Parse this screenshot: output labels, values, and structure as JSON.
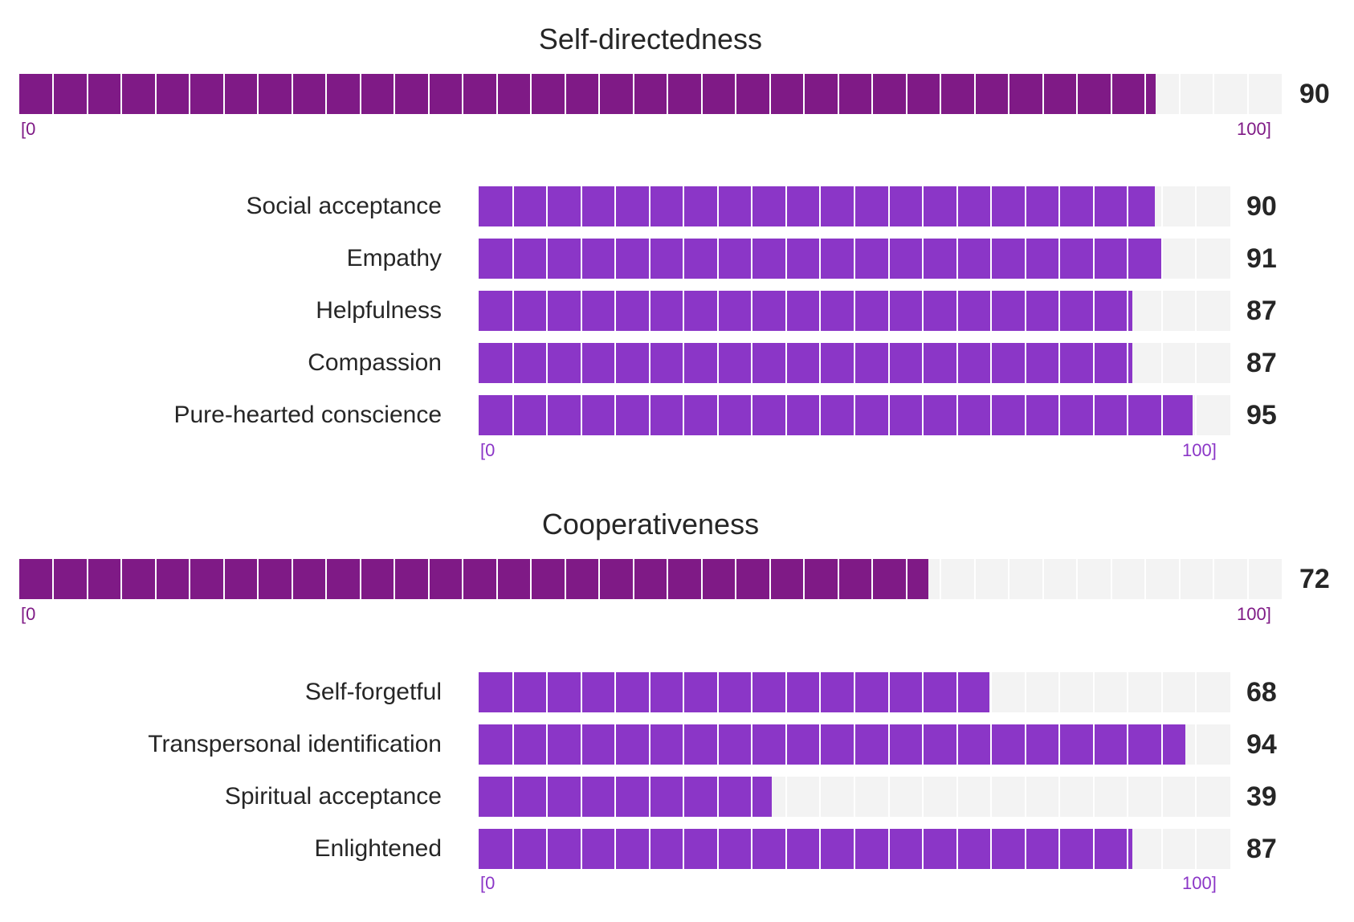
{
  "chart_data": [
    {
      "type": "bar",
      "title": "Self-directedness",
      "scale": {
        "min_label": "[0",
        "max_label": "100]",
        "min": 0,
        "max": 100
      },
      "main_value": 90,
      "main_value_label": "90",
      "categories": [
        "Social acceptance",
        "Empathy",
        "Helpfulness",
        "Compassion",
        "Pure-hearted conscience"
      ],
      "values": [
        90,
        91,
        87,
        87,
        95
      ],
      "value_labels": [
        "90",
        "91",
        "87",
        "87",
        "95"
      ]
    },
    {
      "type": "bar",
      "title": "Cooperativeness",
      "scale": {
        "min_label": "[0",
        "max_label": "100]",
        "min": 0,
        "max": 100
      },
      "main_value": 72,
      "main_value_label": "72",
      "categories": [
        "Self-forgetful",
        "Transpersonal identification",
        "Spiritual acceptance",
        "Enlightened"
      ],
      "values": [
        68,
        94,
        39,
        87
      ],
      "value_labels": [
        "68",
        "94",
        "39",
        "87"
      ]
    }
  ],
  "colors": {
    "main_fill": "#7f1a86",
    "sub_fill": "#8b36c7",
    "track": "#f3f3f3",
    "main_axis_text": "#7f1a86",
    "sub_axis_text": "#8b36c7",
    "text": "#262626"
  }
}
